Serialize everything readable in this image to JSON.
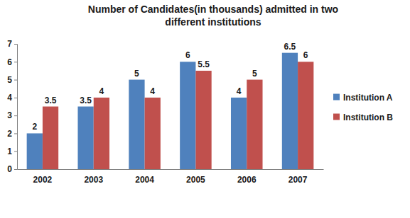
{
  "chart_data": {
    "type": "bar",
    "title": "Number of Candidates(in thousands) admitted in two different institutions",
    "categories": [
      "2002",
      "2003",
      "2004",
      "2005",
      "2006",
      "2007"
    ],
    "series": [
      {
        "name": "Institution A",
        "color": "#4f81bd",
        "values": [
          2,
          3.5,
          5,
          6,
          4,
          6.5
        ]
      },
      {
        "name": "Institution B",
        "color": "#c0504d",
        "values": [
          3.5,
          4,
          4,
          5.5,
          5,
          6
        ]
      }
    ],
    "ylim": [
      0,
      7
    ],
    "yticks": [
      0,
      1,
      2,
      3,
      4,
      5,
      6,
      7
    ],
    "grid": false,
    "legend": "right",
    "data_labels": true
  }
}
